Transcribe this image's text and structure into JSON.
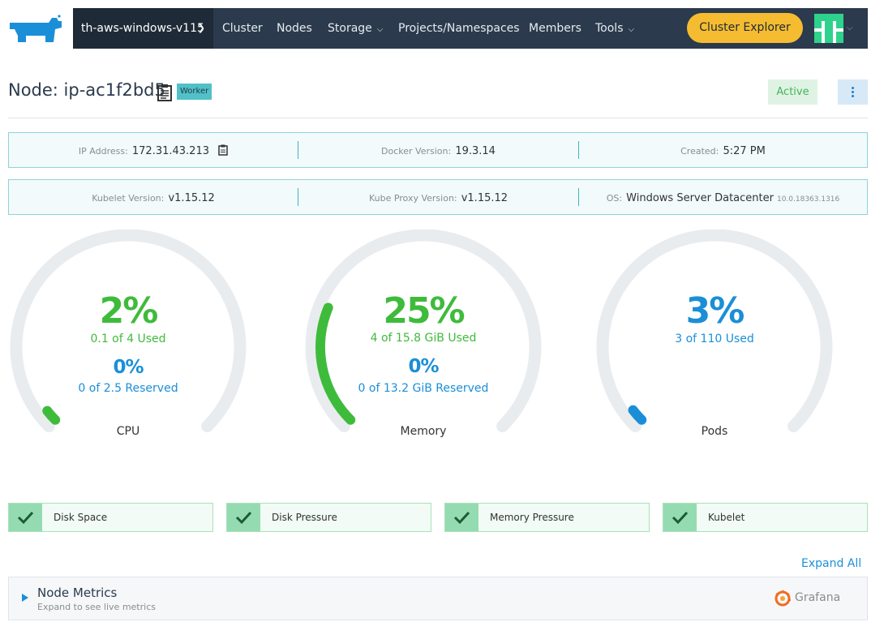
{
  "header": {
    "logo_icon": "rancher-cow-icon",
    "cluster_name": "th-aws-windows-v115",
    "nav": [
      "Cluster",
      "Nodes",
      "Storage",
      "Projects/Namespaces",
      "Members",
      "Tools"
    ],
    "explorer_button": "Cluster Explorer",
    "avatar_icon": "user-identicon-icon",
    "colors": {
      "navbar": "#2b3a4d",
      "accent": "#f5bc31",
      "avatar": "#2fd28c"
    }
  },
  "node": {
    "title": "Node: ip-ac1f2bd5",
    "role": "Worker",
    "state": "Active"
  },
  "info": {
    "ip_label": "IP Address:",
    "ip_value": "172.31.43.213",
    "docker_label": "Docker Version:",
    "docker_value": "19.3.14",
    "created_label": "Created:",
    "created_value": "5:27 PM",
    "kubelet_label": "Kubelet Version:",
    "kubelet_value": "v1.15.12",
    "proxy_label": "Kube Proxy Version:",
    "proxy_value": "v1.15.12",
    "os_label": "OS:",
    "os_value": "Windows Server Datacenter",
    "os_build": "10.0.18363.1316"
  },
  "gauges": {
    "cpu": {
      "pct": "2%",
      "used": "0.1 of 4 Used",
      "rpct": "0%",
      "reserved": "0 of 2.5 Reserved",
      "label": "CPU",
      "used_fraction": 0.025,
      "reserved_fraction": 0
    },
    "memory": {
      "pct": "25%",
      "used": "4 of 15.8 GiB Used",
      "rpct": "0%",
      "reserved": "0 of 13.2 GiB Reserved",
      "label": "Memory",
      "used_fraction": 0.25,
      "reserved_fraction": 0
    },
    "pods": {
      "pct": "3%",
      "used": "3 of 110 Used",
      "label": "Pods",
      "used_fraction": 0.027
    }
  },
  "conditions": [
    "Disk Space",
    "Disk Pressure",
    "Memory Pressure",
    "Kubelet"
  ],
  "metrics": {
    "expand_all": "Expand All",
    "title": "Node Metrics",
    "subtitle": "Expand to see live metrics",
    "grafana": "Grafana"
  }
}
